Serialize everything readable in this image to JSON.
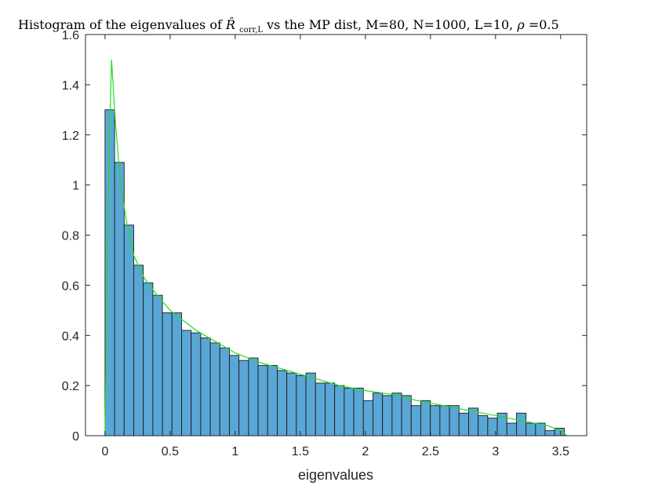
{
  "chart_data": {
    "type": "bar",
    "title": "Histogram of the eigenvalues of R̂corr,L vs the MP dist, M=80, N=1000, L=10, ρ=0.5",
    "title_parts": {
      "prefix": "Histogram of the eigenvalues of ",
      "symbol": "R̂",
      "symbol_sub": "corr,L",
      "suffix": " vs the MP dist, M=80, N=1000, L=10, ",
      "rho_symbol": "ρ",
      "rho_value": "=0.5"
    },
    "xlabel": "eigenvalues",
    "ylabel": "",
    "xlim": [
      -0.15,
      3.7
    ],
    "ylim": [
      0,
      1.6
    ],
    "xticks": [
      0,
      0.5,
      1,
      1.5,
      2,
      2.5,
      3,
      3.5
    ],
    "xtick_labels": [
      "0",
      "0.5",
      "1",
      "1.5",
      "2",
      "2.5",
      "3",
      "3.5"
    ],
    "yticks": [
      0,
      0.2,
      0.4,
      0.6,
      0.8,
      1,
      1.2,
      1.4,
      1.6
    ],
    "ytick_labels": [
      "0",
      "0.2",
      "0.4",
      "0.6",
      "0.8",
      "1",
      "1.2",
      "1.4",
      "1.6"
    ],
    "grid": false,
    "histogram": {
      "bin_start": 0,
      "bin_width": 0.0735,
      "values": [
        1.3,
        1.09,
        0.84,
        0.68,
        0.61,
        0.56,
        0.49,
        0.49,
        0.42,
        0.41,
        0.39,
        0.37,
        0.35,
        0.32,
        0.3,
        0.31,
        0.28,
        0.28,
        0.26,
        0.25,
        0.24,
        0.25,
        0.21,
        0.21,
        0.2,
        0.19,
        0.19,
        0.14,
        0.17,
        0.16,
        0.17,
        0.16,
        0.12,
        0.14,
        0.12,
        0.12,
        0.12,
        0.09,
        0.11,
        0.08,
        0.07,
        0.09,
        0.05,
        0.09,
        0.05,
        0.05,
        0.02,
        0.03
      ],
      "color": "#5aa7d6",
      "edge_color": "#1a1a1a"
    },
    "series": [
      {
        "type": "line",
        "color": "#22dd22",
        "x": [
          0.0,
          0.03,
          0.05,
          0.08,
          0.12,
          0.17,
          0.22,
          0.3,
          0.4,
          0.5,
          0.6,
          0.7,
          0.8,
          0.9,
          1.0,
          1.2,
          1.4,
          1.6,
          1.8,
          2.0,
          2.2,
          2.4,
          2.6,
          2.8,
          3.0,
          3.2,
          3.4,
          3.5,
          3.55
        ],
        "y": [
          0.0,
          1.1,
          1.5,
          1.25,
          1.0,
          0.84,
          0.72,
          0.63,
          0.56,
          0.5,
          0.46,
          0.42,
          0.39,
          0.36,
          0.33,
          0.29,
          0.26,
          0.23,
          0.2,
          0.18,
          0.165,
          0.14,
          0.12,
          0.1,
          0.08,
          0.06,
          0.04,
          0.02,
          0.0
        ]
      }
    ],
    "colors": {
      "axis": "#262626",
      "background": "#ffffff"
    }
  }
}
